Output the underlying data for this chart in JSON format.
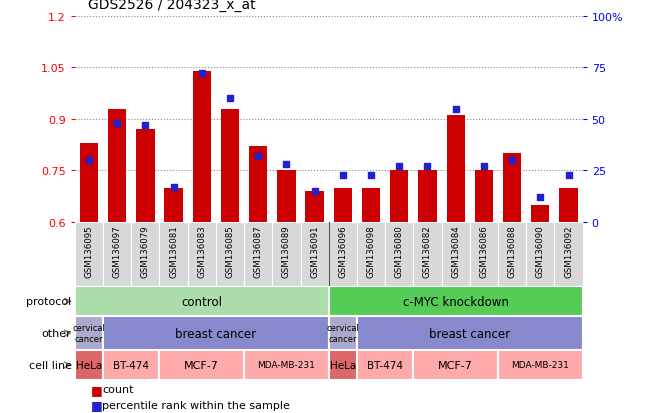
{
  "title": "GDS2526 / 204323_x_at",
  "samples": [
    "GSM136095",
    "GSM136097",
    "GSM136079",
    "GSM136081",
    "GSM136083",
    "GSM136085",
    "GSM136087",
    "GSM136089",
    "GSM136091",
    "GSM136096",
    "GSM136098",
    "GSM136080",
    "GSM136082",
    "GSM136084",
    "GSM136086",
    "GSM136088",
    "GSM136090",
    "GSM136092"
  ],
  "counts": [
    0.83,
    0.93,
    0.87,
    0.7,
    1.04,
    0.93,
    0.82,
    0.75,
    0.69,
    0.7,
    0.7,
    0.75,
    0.75,
    0.91,
    0.75,
    0.8,
    0.65,
    0.7
  ],
  "percentiles": [
    30,
    48,
    47,
    17,
    72,
    60,
    32,
    28,
    15,
    23,
    23,
    27,
    27,
    55,
    27,
    30,
    12,
    23
  ],
  "ymin": 0.6,
  "ymax": 1.2,
  "yticks": [
    0.6,
    0.75,
    0.9,
    1.05,
    1.2
  ],
  "ytick_labels": [
    "0.6",
    "0.75",
    "0.9",
    "1.05",
    "1.2"
  ],
  "right_yticks": [
    0,
    25,
    50,
    75,
    100
  ],
  "right_ytick_labels": [
    "0",
    "25",
    "50",
    "75",
    "100%"
  ],
  "bar_color": "#cc0000",
  "dot_color": "#2222cc",
  "protocol_control_label": "control",
  "protocol_knockdown_label": "c-MYC knockdown",
  "protocol_control_color": "#aaddaa",
  "protocol_knockdown_color": "#55cc55",
  "other_cervical_color": "#aaaacc",
  "other_breast_color": "#8888cc",
  "cell_hela_color": "#dd6666",
  "cell_other_color": "#ffaaaa",
  "xtick_bg_color": "#d8d8d8",
  "n_control": 9,
  "n_knockdown": 9
}
